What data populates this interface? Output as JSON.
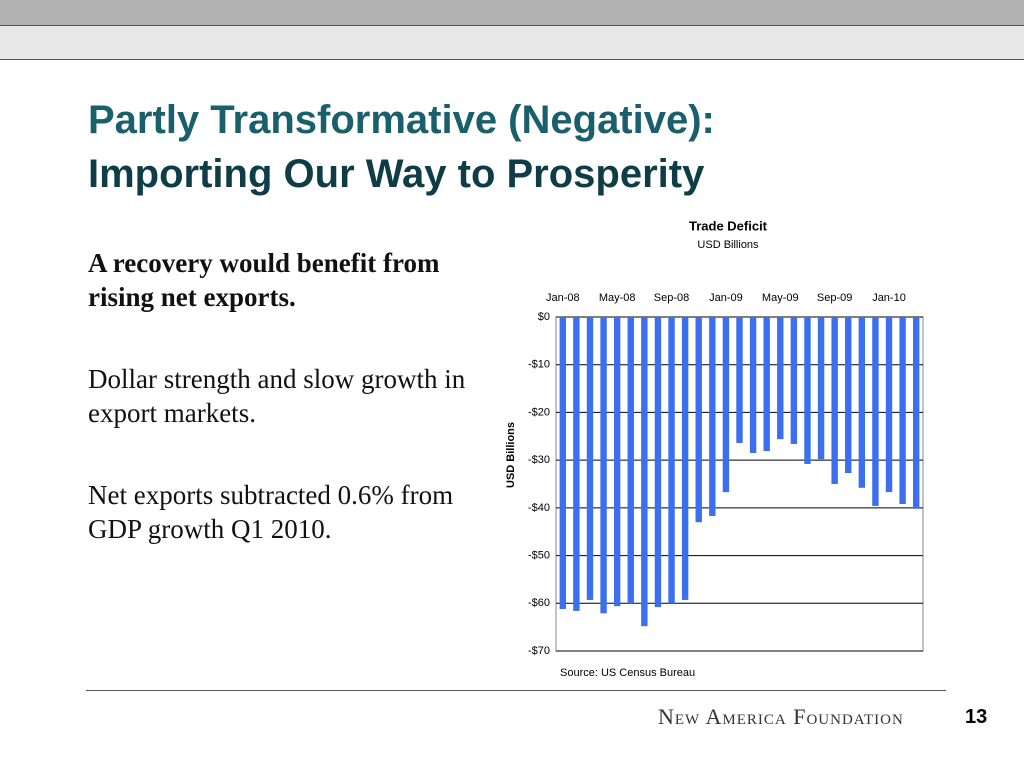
{
  "slide": {
    "title_line1": "Partly Transformative (Negative):",
    "title_line2": "Importing Our Way to Prosperity",
    "points": [
      "A recovery would benefit from rising net exports.",
      "Dollar strength and slow growth in export markets.",
      "Net exports subtracted 0.6% from GDP growth Q1 2010."
    ],
    "footer": "New America Foundation",
    "page_number": "13"
  },
  "chart_data": {
    "type": "bar",
    "title": "Trade Deficit",
    "subtitle": "USD Billions",
    "y_label": "USD Billions",
    "source": "Source: US Census Bureau",
    "categories": [
      "Jan-08",
      null,
      null,
      null,
      "May-08",
      null,
      null,
      null,
      "Sep-08",
      null,
      null,
      null,
      "Jan-09",
      null,
      null,
      null,
      "May-09",
      null,
      null,
      null,
      "Sep-09",
      null,
      null,
      null,
      "Jan-10",
      null,
      null
    ],
    "values": [
      -61.2,
      -61.6,
      -59.3,
      -62.1,
      -60.6,
      -60.0,
      -64.8,
      -60.8,
      -60.0,
      -59.3,
      -43.0,
      -41.7,
      -36.7,
      -26.4,
      -28.5,
      -28.1,
      -25.6,
      -26.6,
      -30.8,
      -29.8,
      -35.0,
      -32.7,
      -35.8,
      -39.6,
      -36.7,
      -39.2,
      -40.2
    ],
    "color": "#3b6ff0",
    "ylim": [
      -70,
      0
    ],
    "yticks": [
      {
        "value": 0,
        "label": "$0"
      },
      {
        "value": -10,
        "label": "-$10"
      },
      {
        "value": -20,
        "label": "-$20"
      },
      {
        "value": -30,
        "label": "-$30"
      },
      {
        "value": -40,
        "label": "-$40"
      },
      {
        "value": -50,
        "label": "-$50"
      },
      {
        "value": -60,
        "label": "-$60"
      },
      {
        "value": -70,
        "label": "-$70"
      }
    ],
    "grid": true
  }
}
